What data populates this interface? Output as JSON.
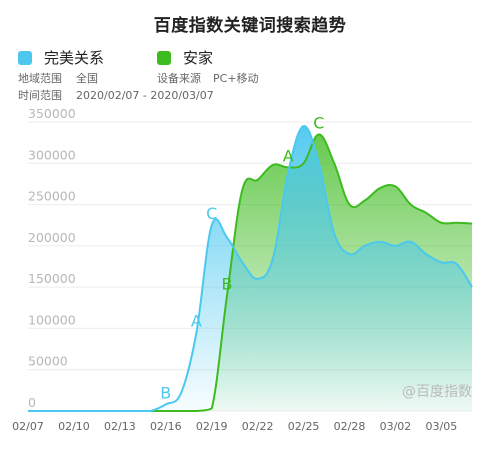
{
  "title": "百度指数关键词搜索趋势",
  "legend": [
    {
      "label": "完美关系",
      "color": "#4cc8ef"
    },
    {
      "label": "安家",
      "color": "#3dbb1f"
    }
  ],
  "meta": {
    "region_label": "地域范围",
    "region_value": "全国",
    "device_label": "设备来源",
    "device_value": "PC+移动",
    "time_label": "时间范围",
    "time_value": "2020/02/07 - 2020/03/07"
  },
  "watermark": "@百度指数",
  "chart_data": {
    "type": "area",
    "x_ticks": [
      "02/07",
      "02/10",
      "02/13",
      "02/16",
      "02/19",
      "02/22",
      "02/25",
      "02/28",
      "03/02",
      "03/05"
    ],
    "y_ticks": [
      "0",
      "50000",
      "100000",
      "150000",
      "200000",
      "250000",
      "300000",
      "350000"
    ],
    "ylim": [
      0,
      350000
    ],
    "grid": true,
    "series": [
      {
        "name": "完美关系",
        "color": "#4cc8ef",
        "x": [
          "02/07",
          "02/08",
          "02/09",
          "02/10",
          "02/11",
          "02/12",
          "02/13",
          "02/14",
          "02/15",
          "02/16",
          "02/17",
          "02/18",
          "02/19",
          "02/20",
          "02/21",
          "02/22",
          "02/23",
          "02/24",
          "02/25",
          "02/26",
          "02/27",
          "02/28",
          "02/29",
          "03/01",
          "03/02",
          "03/03",
          "03/04",
          "03/05",
          "03/06",
          "03/07"
        ],
        "values": [
          0,
          0,
          0,
          0,
          0,
          0,
          0,
          0,
          0,
          8000,
          22000,
          95000,
          225000,
          210000,
          180000,
          160000,
          185000,
          290000,
          345000,
          300000,
          215000,
          190000,
          200000,
          205000,
          200000,
          205000,
          190000,
          180000,
          178000,
          150000
        ]
      },
      {
        "name": "安家",
        "color": "#3dbb1f",
        "x": [
          "02/07",
          "02/08",
          "02/09",
          "02/10",
          "02/11",
          "02/12",
          "02/13",
          "02/14",
          "02/15",
          "02/16",
          "02/17",
          "02/18",
          "02/19",
          "02/20",
          "02/21",
          "02/22",
          "02/23",
          "02/24",
          "02/25",
          "02/26",
          "02/27",
          "02/28",
          "02/29",
          "03/01",
          "03/02",
          "03/03",
          "03/04",
          "03/05",
          "03/06",
          "03/07"
        ],
        "values": [
          0,
          0,
          0,
          0,
          0,
          0,
          0,
          0,
          0,
          0,
          0,
          0,
          3000,
          140000,
          268000,
          280000,
          298000,
          295000,
          300000,
          335000,
          300000,
          250000,
          255000,
          270000,
          272000,
          250000,
          240000,
          228000,
          228000,
          227000
        ]
      }
    ],
    "annotations": [
      {
        "text": "B",
        "series": "完美关系",
        "x": "02/16",
        "value": 8000
      },
      {
        "text": "A",
        "series": "完美关系",
        "x": "02/18",
        "value": 95000
      },
      {
        "text": "C",
        "series": "完美关系",
        "x": "02/19",
        "value": 225000
      },
      {
        "text": "B",
        "series": "安家",
        "x": "02/20",
        "value": 140000
      },
      {
        "text": "A",
        "series": "安家",
        "x": "02/24",
        "value": 295000
      },
      {
        "text": "C",
        "series": "安家",
        "x": "02/26",
        "value": 335000
      }
    ]
  }
}
